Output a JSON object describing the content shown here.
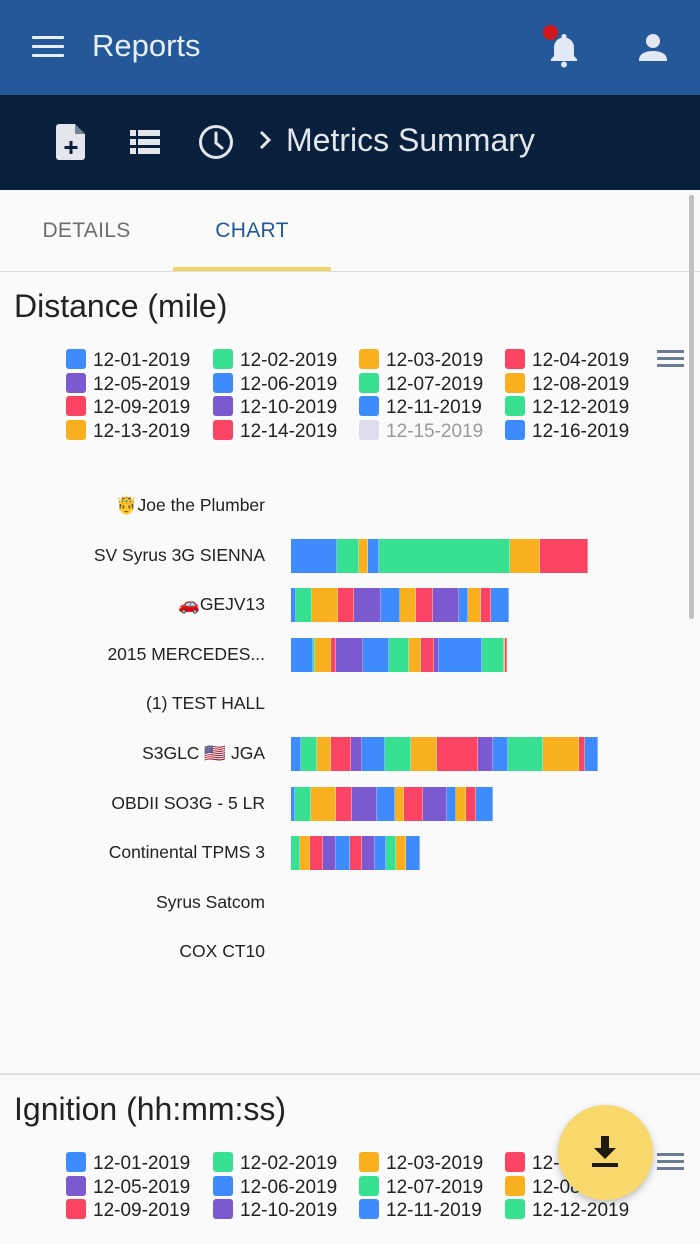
{
  "appbar": {
    "title": "Reports",
    "icons": [
      "menu-icon",
      "bell-icon",
      "user-icon"
    ],
    "notification_dot_color": "#d0151b",
    "background": "#245898"
  },
  "subbar": {
    "icons": [
      "new-report-icon",
      "list-icon",
      "history-clock-icon",
      "chevron-right-icon"
    ],
    "breadcrumb": "Metrics Summary",
    "background": "#08203c"
  },
  "tabs": [
    {
      "label": "DETAILS",
      "active": false
    },
    {
      "label": "CHART",
      "active": true
    }
  ],
  "colors": {
    "blue": "#3d8bfd",
    "green": "#38e192",
    "orange": "#f8b01e",
    "red": "#fb4463",
    "purple": "#7a5ace",
    "disabled": "#dfdcef"
  },
  "distance_section": {
    "title": "Distance (mile)",
    "legend": [
      {
        "label": "12-01-2019",
        "color": "#3d8bfd"
      },
      {
        "label": "12-02-2019",
        "color": "#38e192"
      },
      {
        "label": "12-03-2019",
        "color": "#f8b01e"
      },
      {
        "label": "12-04-2019",
        "color": "#fb4463"
      },
      {
        "label": "12-05-2019",
        "color": "#7a5ace"
      },
      {
        "label": "12-06-2019",
        "color": "#3d8bfd"
      },
      {
        "label": "12-07-2019",
        "color": "#38e192"
      },
      {
        "label": "12-08-2019",
        "color": "#f8b01e"
      },
      {
        "label": "12-09-2019",
        "color": "#fb4463"
      },
      {
        "label": "12-10-2019",
        "color": "#7a5ace"
      },
      {
        "label": "12-11-2019",
        "color": "#3d8bfd"
      },
      {
        "label": "12-12-2019",
        "color": "#38e192"
      },
      {
        "label": "12-13-2019",
        "color": "#f8b01e"
      },
      {
        "label": "12-14-2019",
        "color": "#fb4463"
      },
      {
        "label": "12-15-2019",
        "color": "#dfdcef",
        "hidden": true
      },
      {
        "label": "12-16-2019",
        "color": "#3d8bfd"
      }
    ]
  },
  "ignition_section": {
    "title": "Ignition (hh:mm:ss)",
    "legend": [
      {
        "label": "12-01-2019",
        "color": "#3d8bfd"
      },
      {
        "label": "12-02-2019",
        "color": "#38e192"
      },
      {
        "label": "12-03-2019",
        "color": "#f8b01e"
      },
      {
        "label": "12-04-2019",
        "color": "#fb4463"
      },
      {
        "label": "12-05-2019",
        "color": "#7a5ace"
      },
      {
        "label": "12-06-2019",
        "color": "#3d8bfd"
      },
      {
        "label": "12-07-2019",
        "color": "#38e192"
      },
      {
        "label": "12-08-2019",
        "color": "#f8b01e"
      },
      {
        "label": "12-09-2019",
        "color": "#fb4463"
      },
      {
        "label": "12-10-2019",
        "color": "#7a5ace"
      },
      {
        "label": "12-11-2019",
        "color": "#3d8bfd"
      },
      {
        "label": "12-12-2019",
        "color": "#38e192"
      }
    ]
  },
  "fab": {
    "icon": "download-icon",
    "color": "#f9d86b"
  },
  "chart_data": [
    {
      "type": "bar",
      "orientation": "horizontal",
      "stacked": true,
      "title": "Distance (mile)",
      "xlabel": "",
      "ylabel": "",
      "grid": false,
      "legend_position": "top",
      "note": "No axis ticks shown; values are relative segment lengths estimated in pixels.",
      "categories": [
        "🤴Joe the Plumber",
        "SV Syrus 3G SIENNA",
        "🚗GEJV13",
        "2015 MERCEDES...",
        "(1) TEST HALL",
        "S3GLC 🇺🇸 JGA",
        "OBDII SO3G - 5 LR",
        "Continental TPMS 3",
        "Syrus Satcom",
        "COX CT10"
      ],
      "series_labels": [
        "12-01-2019",
        "12-02-2019",
        "12-03-2019",
        "12-04-2019",
        "12-05-2019",
        "12-06-2019",
        "12-07-2019",
        "12-08-2019",
        "12-09-2019",
        "12-10-2019",
        "12-11-2019",
        "12-12-2019",
        "12-13-2019",
        "12-14-2019",
        "12-15-2019",
        "12-16-2019"
      ],
      "bars": [
        {
          "category": "🤴Joe the Plumber",
          "segments": []
        },
        {
          "category": "SV Syrus 3G SIENNA",
          "segments": [
            {
              "color": "#3d8bfd",
              "value": 46
            },
            {
              "color": "#38e192",
              "value": 22
            },
            {
              "color": "#f8b01e",
              "value": 9
            },
            {
              "color": "#3d8bfd",
              "value": 11
            },
            {
              "color": "#38e192",
              "value": 131
            },
            {
              "color": "#f8b01e",
              "value": 30
            },
            {
              "color": "#fb4463",
              "value": 48
            }
          ]
        },
        {
          "category": "🚗GEJV13",
          "segments": [
            {
              "color": "#3d8bfd",
              "value": 5
            },
            {
              "color": "#38e192",
              "value": 16
            },
            {
              "color": "#f8b01e",
              "value": 26
            },
            {
              "color": "#fb4463",
              "value": 16
            },
            {
              "color": "#7a5ace",
              "value": 27
            },
            {
              "color": "#3d8bfd",
              "value": 19
            },
            {
              "color": "#f8b01e",
              "value": 16
            },
            {
              "color": "#fb4463",
              "value": 17
            },
            {
              "color": "#7a5ace",
              "value": 26
            },
            {
              "color": "#3d8bfd",
              "value": 9
            },
            {
              "color": "#f8b01e",
              "value": 13
            },
            {
              "color": "#fb4463",
              "value": 10
            },
            {
              "color": "#3d8bfd",
              "value": 18
            }
          ]
        },
        {
          "category": "2015 MERCEDES...",
          "segments": [
            {
              "color": "#3d8bfd",
              "value": 22
            },
            {
              "color": "#38e192",
              "value": 2
            },
            {
              "color": "#f8b01e",
              "value": 16
            },
            {
              "color": "#fb4463",
              "value": 5
            },
            {
              "color": "#7a5ace",
              "value": 27
            },
            {
              "color": "#3d8bfd",
              "value": 26
            },
            {
              "color": "#38e192",
              "value": 20
            },
            {
              "color": "#f8b01e",
              "value": 12
            },
            {
              "color": "#fb4463",
              "value": 13
            },
            {
              "color": "#7a5ace",
              "value": 5
            },
            {
              "color": "#3d8bfd",
              "value": 43
            },
            {
              "color": "#38e192",
              "value": 22
            },
            {
              "color": "#f8b01e",
              "value": 1
            },
            {
              "color": "#fb4463",
              "value": 2
            }
          ]
        },
        {
          "category": "(1) TEST HALL",
          "segments": []
        },
        {
          "category": "S3GLC 🇺🇸 JGA",
          "segments": [
            {
              "color": "#3d8bfd",
              "value": 10
            },
            {
              "color": "#38e192",
              "value": 16
            },
            {
              "color": "#f8b01e",
              "value": 14
            },
            {
              "color": "#fb4463",
              "value": 20
            },
            {
              "color": "#7a5ace",
              "value": 11
            },
            {
              "color": "#3d8bfd",
              "value": 23
            },
            {
              "color": "#38e192",
              "value": 26
            },
            {
              "color": "#f8b01e",
              "value": 26
            },
            {
              "color": "#fb4463",
              "value": 41
            },
            {
              "color": "#7a5ace",
              "value": 15
            },
            {
              "color": "#3d8bfd",
              "value": 15
            },
            {
              "color": "#38e192",
              "value": 35
            },
            {
              "color": "#f8b01e",
              "value": 36
            },
            {
              "color": "#fb4463",
              "value": 6
            },
            {
              "color": "#3d8bfd",
              "value": 13
            }
          ]
        },
        {
          "category": "OBDII SO3G - 5 LR",
          "segments": [
            {
              "color": "#3d8bfd",
              "value": 4
            },
            {
              "color": "#38e192",
              "value": 16
            },
            {
              "color": "#f8b01e",
              "value": 25
            },
            {
              "color": "#fb4463",
              "value": 16
            },
            {
              "color": "#7a5ace",
              "value": 25
            },
            {
              "color": "#3d8bfd",
              "value": 18
            },
            {
              "color": "#f8b01e",
              "value": 9
            },
            {
              "color": "#fb4463",
              "value": 19
            },
            {
              "color": "#7a5ace",
              "value": 24
            },
            {
              "color": "#3d8bfd",
              "value": 9
            },
            {
              "color": "#f8b01e",
              "value": 10
            },
            {
              "color": "#fb4463",
              "value": 10
            },
            {
              "color": "#3d8bfd",
              "value": 17
            }
          ]
        },
        {
          "category": "Continental TPMS 3",
          "segments": [
            {
              "color": "#38e192",
              "value": 9
            },
            {
              "color": "#f8b01e",
              "value": 10
            },
            {
              "color": "#fb4463",
              "value": 13
            },
            {
              "color": "#7a5ace",
              "value": 13
            },
            {
              "color": "#3d8bfd",
              "value": 14
            },
            {
              "color": "#fb4463",
              "value": 12
            },
            {
              "color": "#7a5ace",
              "value": 13
            },
            {
              "color": "#3d8bfd",
              "value": 11
            },
            {
              "color": "#38e192",
              "value": 10
            },
            {
              "color": "#f8b01e",
              "value": 10
            },
            {
              "color": "#3d8bfd",
              "value": 14
            }
          ]
        },
        {
          "category": "Syrus Satcom",
          "segments": []
        },
        {
          "category": "COX CT10",
          "segments": []
        }
      ]
    },
    {
      "type": "bar",
      "orientation": "horizontal",
      "stacked": true,
      "title": "Ignition (hh:mm:ss)",
      "legend_position": "top",
      "note": "Only title and partial legend visible; bars are below the visible area."
    }
  ]
}
